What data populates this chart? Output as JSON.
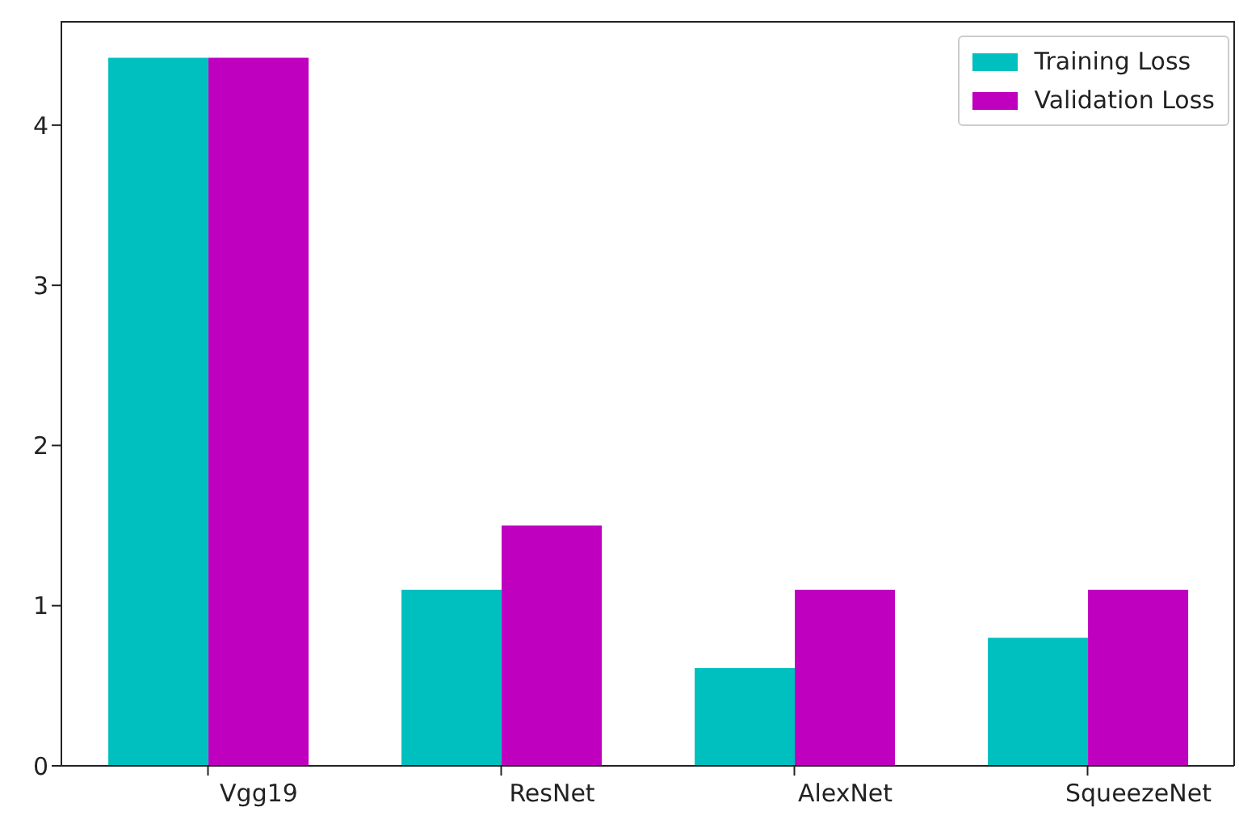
{
  "chart_data": {
    "type": "bar",
    "categories": [
      "Vgg19",
      "ResNet",
      "AlexNet",
      "SqueezeNet"
    ],
    "series": [
      {
        "name": "Training Loss",
        "color": "#00bfbf",
        "values": [
          4.42,
          1.1,
          0.61,
          0.8
        ]
      },
      {
        "name": "Validation Loss",
        "color": "#bf00bf",
        "values": [
          4.42,
          1.5,
          1.1,
          1.1
        ]
      }
    ],
    "ylim": [
      0,
      4.65
    ],
    "yticks": [
      0,
      1,
      2,
      3,
      4
    ],
    "grid": false,
    "legend": "top right"
  }
}
